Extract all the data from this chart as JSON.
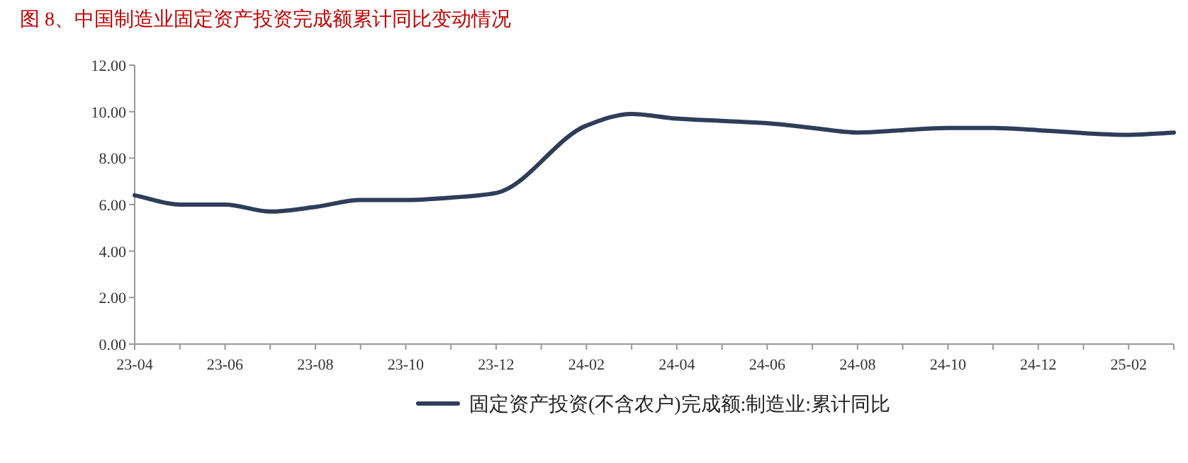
{
  "chart_data": {
    "type": "line",
    "title": "图 8、中国制造业固定资产投资完成额累计同比变动情况",
    "categories": [
      "23-04",
      null,
      "23-06",
      null,
      "23-08",
      null,
      "23-10",
      null,
      "23-12",
      null,
      "24-02",
      null,
      "24-04",
      null,
      "24-06",
      null,
      "24-08",
      null,
      "24-10",
      null,
      "24-12",
      null,
      "25-02",
      null
    ],
    "series": [
      {
        "name": "固定资产投资(不含农户)完成额:制造业:累计同比",
        "color": "#2e3d5a",
        "values": [
          6.4,
          6.0,
          6.0,
          5.7,
          5.9,
          6.2,
          6.2,
          6.3,
          6.5,
          null,
          9.4,
          9.9,
          9.7,
          9.6,
          9.5,
          9.3,
          9.1,
          9.2,
          9.3,
          9.3,
          9.2,
          null,
          9.0,
          9.1
        ]
      }
    ],
    "ylim": [
      0,
      12
    ],
    "yticks": [
      {
        "value": 0,
        "label": "0.00"
      },
      {
        "value": 2,
        "label": "2.00"
      },
      {
        "value": 4,
        "label": "4.00"
      },
      {
        "value": 6,
        "label": "6.00"
      },
      {
        "value": 8,
        "label": "8.00"
      },
      {
        "value": 10,
        "label": "10.00"
      },
      {
        "value": 12,
        "label": "12.00"
      }
    ],
    "grid": false,
    "legend": "bottom",
    "marker": "none",
    "line_style": "solid"
  }
}
